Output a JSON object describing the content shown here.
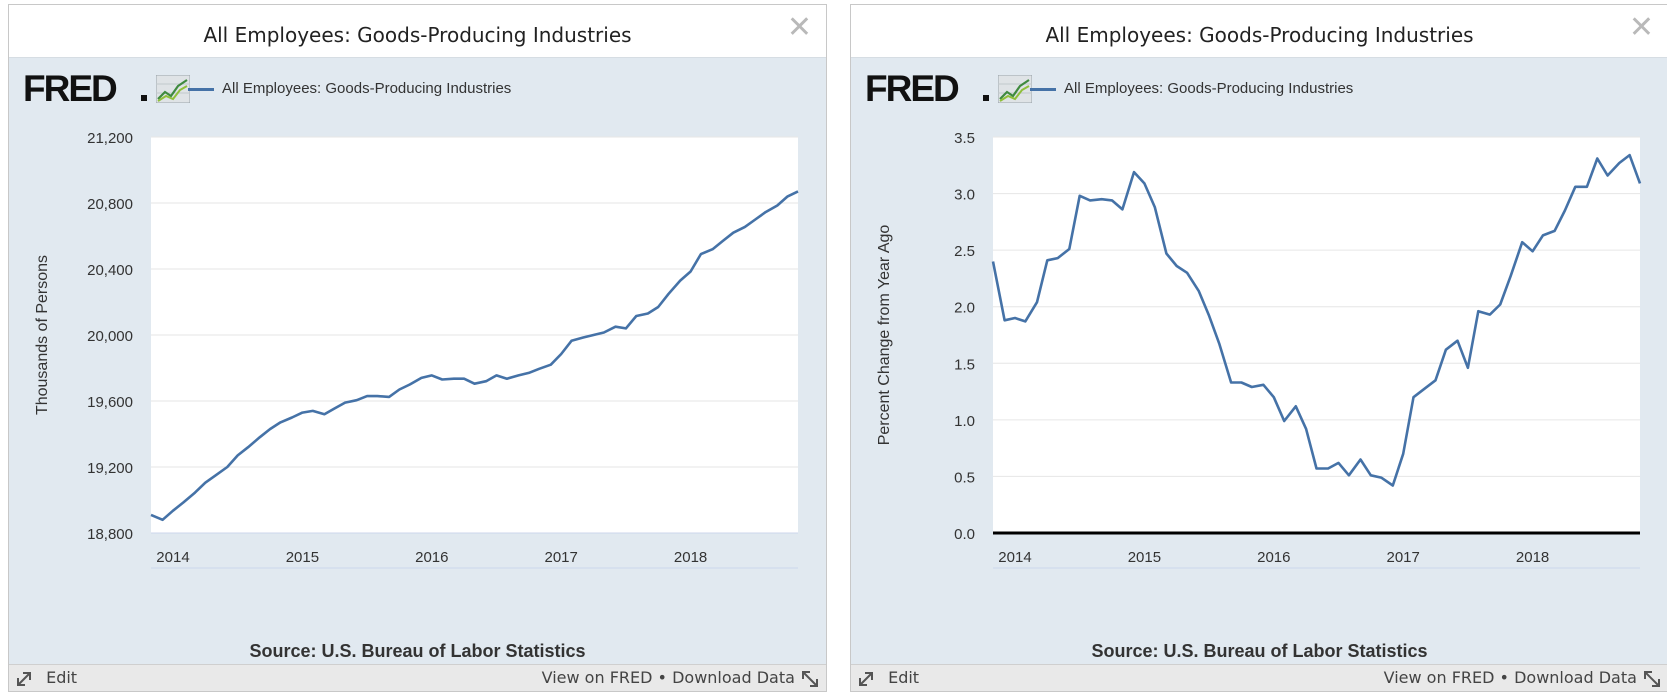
{
  "panels": [
    {
      "title": "All Employees: Goods-Producing Industries",
      "logo_text": "FRED",
      "legend_label": "All Employees: Goods-Producing Industries",
      "source": "Source: U.S. Bureau of Labor Statistics",
      "footer": {
        "edit": "Edit",
        "view": "View on FRED",
        "separator": "•",
        "download": "Download Data"
      }
    },
    {
      "title": "All Employees: Goods-Producing Industries",
      "logo_text": "FRED",
      "legend_label": "All Employees: Goods-Producing Industries",
      "source": "Source: U.S. Bureau of Labor Statistics",
      "footer": {
        "edit": "Edit",
        "view": "View on FRED",
        "separator": "•",
        "download": "Download Data"
      }
    }
  ],
  "colors": {
    "line": "#4572a7",
    "panel_bg": "#e1e9f0",
    "plot_bg": "#ffffff",
    "grid": "#e6e6e6"
  },
  "chart_data": [
    {
      "type": "line",
      "title": "All Employees: Goods-Producing Industries",
      "ylabel": "Thousands of Persons",
      "xlabel": "",
      "xlim": [
        2013.83,
        2018.83
      ],
      "ylim": [
        18800,
        21200
      ],
      "yticks": [
        18800,
        19200,
        19600,
        20000,
        20400,
        20800,
        21200
      ],
      "ytick_labels": [
        "18,800",
        "19,200",
        "19,600",
        "20,000",
        "20,400",
        "20,800",
        "21,200"
      ],
      "xticks": [
        2014,
        2015,
        2016,
        2017,
        2018
      ],
      "xtick_labels": [
        "2014",
        "2015",
        "2016",
        "2017",
        "2018"
      ],
      "grid": true,
      "legend": "top-left",
      "series": [
        {
          "name": "All Employees: Goods-Producing Industries",
          "x": [
            2013.83,
            2013.92,
            2014.0,
            2014.08,
            2014.17,
            2014.25,
            2014.33,
            2014.42,
            2014.5,
            2014.58,
            2014.67,
            2014.75,
            2014.83,
            2014.92,
            2015.0,
            2015.08,
            2015.17,
            2015.25,
            2015.33,
            2015.42,
            2015.5,
            2015.58,
            2015.67,
            2015.75,
            2015.83,
            2015.92,
            2016.0,
            2016.08,
            2016.17,
            2016.25,
            2016.33,
            2016.42,
            2016.5,
            2016.58,
            2016.67,
            2016.75,
            2016.83,
            2016.92,
            2017.0,
            2017.08,
            2017.17,
            2017.25,
            2017.33,
            2017.42,
            2017.5,
            2017.58,
            2017.67,
            2017.75,
            2017.83,
            2017.92,
            2018.0,
            2018.08,
            2018.17,
            2018.25,
            2018.33,
            2018.42,
            2018.5,
            2018.58,
            2018.67,
            2018.75,
            2018.83
          ],
          "values": [
            18910,
            18880,
            18935,
            18985,
            19045,
            19105,
            19150,
            19200,
            19270,
            19320,
            19380,
            19430,
            19470,
            19500,
            19530,
            19540,
            19520,
            19555,
            19590,
            19605,
            19630,
            19630,
            19625,
            19670,
            19700,
            19740,
            19755,
            19730,
            19735,
            19735,
            19705,
            19720,
            19755,
            19735,
            19755,
            19770,
            19795,
            19820,
            19885,
            19965,
            19985,
            20000,
            20015,
            20050,
            20040,
            20115,
            20130,
            20170,
            20250,
            20330,
            20385,
            20490,
            20520,
            20570,
            20620,
            20655,
            20700,
            20745,
            20785,
            20840,
            20870
          ]
        }
      ]
    },
    {
      "type": "line",
      "title": "All Employees: Goods-Producing Industries",
      "ylabel": "Percent Change from Year Ago",
      "xlabel": "",
      "xlim": [
        2013.83,
        2018.83
      ],
      "ylim": [
        0,
        3.5
      ],
      "yticks": [
        0,
        0.5,
        1.0,
        1.5,
        2.0,
        2.5,
        3.0,
        3.5
      ],
      "ytick_labels": [
        "0.0",
        "0.5",
        "1.0",
        "1.5",
        "2.0",
        "2.5",
        "3.0",
        "3.5"
      ],
      "xticks": [
        2014,
        2015,
        2016,
        2017,
        2018
      ],
      "xtick_labels": [
        "2014",
        "2015",
        "2016",
        "2017",
        "2018"
      ],
      "grid": true,
      "legend": "top-left",
      "series": [
        {
          "name": "All Employees: Goods-Producing Industries",
          "x": [
            2013.83,
            2013.92,
            2014.0,
            2014.08,
            2014.17,
            2014.25,
            2014.33,
            2014.42,
            2014.5,
            2014.58,
            2014.67,
            2014.75,
            2014.83,
            2014.92,
            2015.0,
            2015.08,
            2015.17,
            2015.25,
            2015.33,
            2015.42,
            2015.5,
            2015.58,
            2015.67,
            2015.75,
            2015.83,
            2015.92,
            2016.0,
            2016.08,
            2016.17,
            2016.25,
            2016.33,
            2016.42,
            2016.5,
            2016.58,
            2016.67,
            2016.75,
            2016.83,
            2016.92,
            2017.0,
            2017.08,
            2017.17,
            2017.25,
            2017.33,
            2017.42,
            2017.5,
            2017.58,
            2017.67,
            2017.75,
            2017.83,
            2017.92,
            2018.0,
            2018.08,
            2018.17,
            2018.25,
            2018.33,
            2018.42,
            2018.5,
            2018.58,
            2018.67,
            2018.75,
            2018.83
          ],
          "values": [
            2.4,
            1.88,
            1.9,
            1.87,
            2.04,
            2.41,
            2.43,
            2.51,
            2.98,
            2.94,
            2.95,
            2.94,
            2.86,
            3.19,
            3.09,
            2.88,
            2.47,
            2.36,
            2.3,
            2.14,
            1.92,
            1.67,
            1.33,
            1.33,
            1.29,
            1.31,
            1.2,
            0.99,
            1.12,
            0.92,
            0.57,
            0.57,
            0.62,
            0.51,
            0.65,
            0.51,
            0.49,
            0.42,
            0.7,
            1.2,
            1.28,
            1.35,
            1.62,
            1.7,
            1.46,
            1.96,
            1.93,
            2.02,
            2.27,
            2.57,
            2.49,
            2.63,
            2.67,
            2.85,
            3.06,
            3.06,
            3.31,
            3.16,
            3.27,
            3.34,
            3.09
          ]
        }
      ]
    }
  ]
}
